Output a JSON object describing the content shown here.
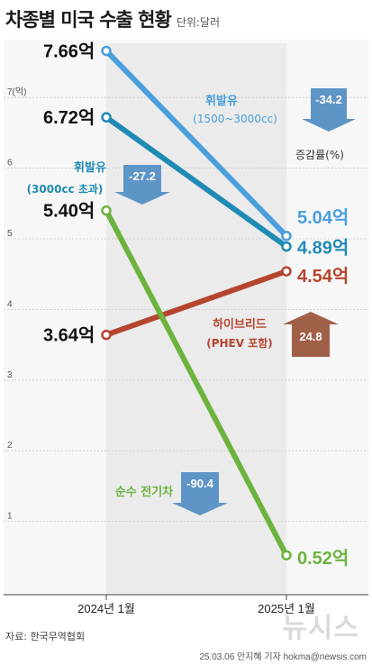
{
  "title": "차종별 미국 수출 현황",
  "unit": "단위:달러",
  "source": "자료: 한국무역협회",
  "credit": "25.03.06 안지혜 기자 hokma@newsis.com",
  "logo": "뉴시스",
  "change_legend": "증감률(%)",
  "chart_data": {
    "type": "line",
    "x": [
      "2024년 1월",
      "2025년 1월"
    ],
    "y_axis_unit_label": "7(억)",
    "y_ticks": [
      "7(억)",
      "6",
      "5",
      "4",
      "3",
      "2",
      "1"
    ],
    "ylim": [
      0,
      7.5
    ],
    "series": [
      {
        "name": "휘발유 (1500~3000cc)",
        "values": [
          7.66,
          5.04
        ],
        "labels": [
          "7.66억",
          "5.04억"
        ],
        "color": "#4a9fdc",
        "change": "-34.2"
      },
      {
        "name": "휘발유 (3000cc 초과)",
        "values": [
          6.72,
          4.89
        ],
        "labels": [
          "6.72억",
          "4.89억"
        ],
        "color": "#1f8bb5",
        "change": "-27.2"
      },
      {
        "name": "순수 전기차",
        "values": [
          5.4,
          0.52
        ],
        "labels": [
          "5.40억",
          "0.52억"
        ],
        "color": "#6cb33f",
        "change": "-90.4"
      },
      {
        "name": "하이브리드 (PHEV 포함)",
        "values": [
          3.64,
          4.54
        ],
        "labels": [
          "3.64억",
          "4.54억"
        ],
        "color": "#b5452f",
        "change": "24.8"
      }
    ],
    "annotations": [
      {
        "line1": "휘발유",
        "line2": "(1500~3000cc)"
      },
      {
        "line1": "휘발유",
        "line2": "(3000cc 초과)"
      },
      {
        "line1": "순수 전기차",
        "line2": ""
      },
      {
        "line1": "하이브리드",
        "line2": "(PHEV 포함)"
      }
    ]
  }
}
